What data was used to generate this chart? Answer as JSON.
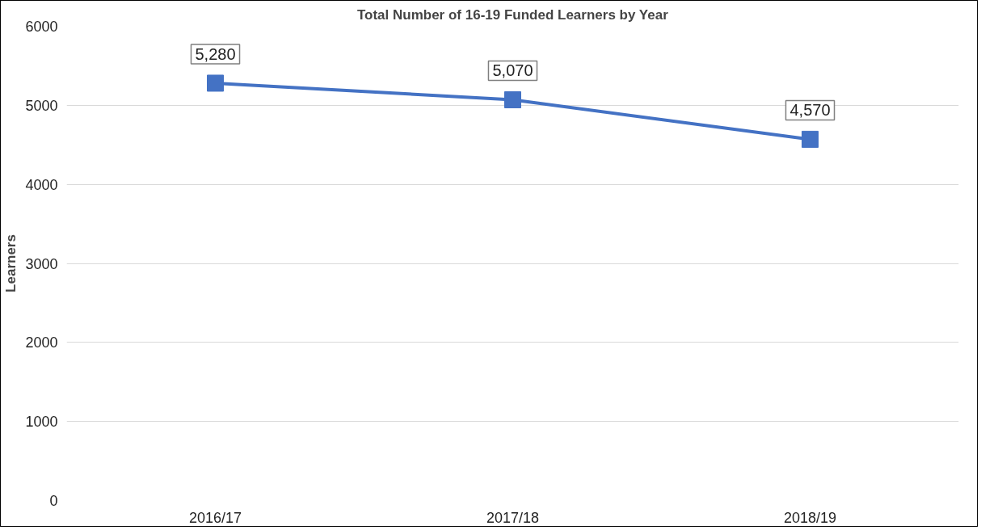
{
  "chart_data": {
    "type": "line",
    "title": "Total Number of 16-19 Funded Learners by Year",
    "ylabel": "Learners",
    "categories": [
      "2016/17",
      "2017/18",
      "2018/19"
    ],
    "series": [
      {
        "color": "#4472c4",
        "values": [
          5280,
          5070,
          4570
        ],
        "value_labels": [
          "5,280",
          "5,070",
          "4,570"
        ]
      }
    ],
    "ylim": [
      0,
      6000
    ],
    "yticks": [
      0,
      1000,
      2000,
      3000,
      4000,
      5000,
      6000
    ],
    "grid": "y",
    "marker": "square",
    "line_style": "solid"
  }
}
